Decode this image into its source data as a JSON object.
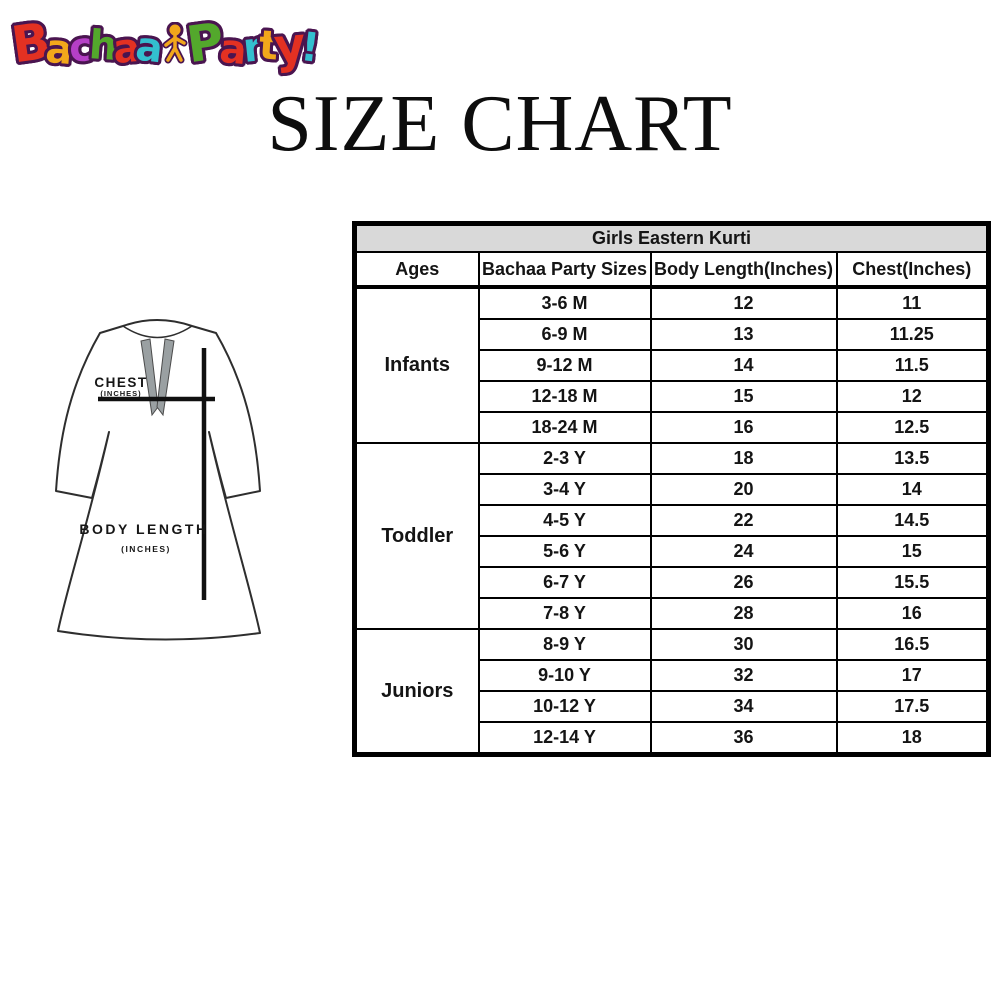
{
  "page": {
    "title": "SIZE CHART",
    "background": "#ffffff"
  },
  "logo": {
    "name": "Bachaa Party!",
    "outline_color": "#4a1550",
    "figure_color": "#f2a71b",
    "word1": [
      {
        "ch": "B",
        "color": "#e33122"
      },
      {
        "ch": "a",
        "color": "#f2a71b"
      },
      {
        "ch": "c",
        "color": "#b53fc6"
      },
      {
        "ch": "h",
        "color": "#53a82c"
      },
      {
        "ch": "a",
        "color": "#e33122"
      },
      {
        "ch": "a",
        "color": "#33bfcf"
      }
    ],
    "word2": [
      {
        "ch": "P",
        "color": "#53a82c"
      },
      {
        "ch": "a",
        "color": "#e33122"
      },
      {
        "ch": "r",
        "color": "#33bfcf"
      },
      {
        "ch": "t",
        "color": "#f2a71b"
      },
      {
        "ch": "y",
        "color": "#e33122"
      },
      {
        "ch": "!",
        "color": "#33bfcf"
      }
    ]
  },
  "figure": {
    "chest_label": "CHEST",
    "chest_unit": "(INCHES)",
    "length_label": "BODY LENGTH",
    "length_unit": "(INCHES)"
  },
  "table": {
    "title": "Girls Eastern Kurti",
    "headers": [
      "Ages",
      "Bachaa Party Sizes",
      "Body Length(Inches)",
      "Chest(Inches)"
    ],
    "groups": [
      {
        "age": "Infants",
        "rows": [
          {
            "size": "3-6 M",
            "length": "12",
            "chest": "11"
          },
          {
            "size": "6-9 M",
            "length": "13",
            "chest": "11.25"
          },
          {
            "size": "9-12 M",
            "length": "14",
            "chest": "11.5"
          },
          {
            "size": "12-18 M",
            "length": "15",
            "chest": "12"
          },
          {
            "size": "18-24 M",
            "length": "16",
            "chest": "12.5"
          }
        ]
      },
      {
        "age": "Toddler",
        "rows": [
          {
            "size": "2-3 Y",
            "length": "18",
            "chest": "13.5"
          },
          {
            "size": "3-4 Y",
            "length": "20",
            "chest": "14"
          },
          {
            "size": "4-5 Y",
            "length": "22",
            "chest": "14.5"
          },
          {
            "size": "5-6 Y",
            "length": "24",
            "chest": "15"
          },
          {
            "size": "6-7 Y",
            "length": "26",
            "chest": "15.5"
          },
          {
            "size": "7-8 Y",
            "length": "28",
            "chest": "16"
          }
        ]
      },
      {
        "age": "Juniors",
        "rows": [
          {
            "size": "8-9 Y",
            "length": "30",
            "chest": "16.5"
          },
          {
            "size": "9-10 Y",
            "length": "32",
            "chest": "17"
          },
          {
            "size": "10-12 Y",
            "length": "34",
            "chest": "17.5"
          },
          {
            "size": "12-14 Y",
            "length": "36",
            "chest": "18"
          }
        ]
      }
    ]
  },
  "chart_data": {
    "type": "table",
    "title": "Girls Eastern Kurti",
    "columns": [
      "Ages",
      "Bachaa Party Sizes",
      "Body Length(Inches)",
      "Chest(Inches)"
    ],
    "rows": [
      [
        "Infants",
        "3-6 M",
        12,
        11
      ],
      [
        "Infants",
        "6-9 M",
        13,
        11.25
      ],
      [
        "Infants",
        "9-12 M",
        14,
        11.5
      ],
      [
        "Infants",
        "12-18 M",
        15,
        12
      ],
      [
        "Infants",
        "18-24 M",
        16,
        12.5
      ],
      [
        "Toddler",
        "2-3 Y",
        18,
        13.5
      ],
      [
        "Toddler",
        "3-4 Y",
        20,
        14
      ],
      [
        "Toddler",
        "4-5 Y",
        22,
        14.5
      ],
      [
        "Toddler",
        "5-6 Y",
        24,
        15
      ],
      [
        "Toddler",
        "6-7 Y",
        26,
        15.5
      ],
      [
        "Toddler",
        "7-8 Y",
        28,
        16
      ],
      [
        "Juniors",
        "8-9 Y",
        30,
        16.5
      ],
      [
        "Juniors",
        "9-10 Y",
        32,
        17
      ],
      [
        "Juniors",
        "10-12 Y",
        34,
        17.5
      ],
      [
        "Juniors",
        "12-14 Y",
        36,
        18
      ]
    ]
  },
  "colors": {
    "table_header_bg": "#d9d9d9",
    "table_border": "#000000",
    "text": "#141414"
  }
}
